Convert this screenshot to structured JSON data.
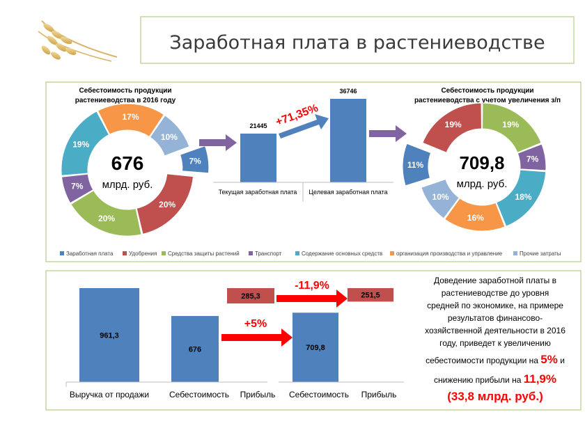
{
  "title": "Заработная плата в растениеводстве",
  "colors": {
    "wages": "#4f81bd",
    "fertilizer": "#c0504d",
    "protection": "#9bbb59",
    "transport": "#8064a2",
    "fixed_assets": "#4bacc6",
    "organization": "#f79646",
    "other": "#95b3d7",
    "red_arrow": "#ff0000",
    "purple_arrow": "#8064a2",
    "panel_border": "#c4d79b",
    "accent_red": "#ff0000"
  },
  "chart_data": [
    {
      "type": "pie",
      "id": "donut_2016",
      "title": "Себестоимость продукции растениеводства в 2016 году",
      "center_value": "676",
      "center_unit": "млрд. руб.",
      "slices": [
        {
          "key": "wages",
          "label": "7%",
          "value": 7,
          "exploded": true
        },
        {
          "key": "fertilizer",
          "label": "20%",
          "value": 20
        },
        {
          "key": "protection",
          "label": "20%",
          "value": 20
        },
        {
          "key": "transport",
          "label": "7%",
          "value": 7
        },
        {
          "key": "fixed_assets",
          "label": "19%",
          "value": 19
        },
        {
          "key": "organization",
          "label": "17%",
          "value": 17
        },
        {
          "key": "other",
          "label": "10%",
          "value": 10
        }
      ]
    },
    {
      "type": "bar",
      "id": "wage_bars",
      "categories": [
        "Текущая заработная плата",
        "Целевая заработная плата"
      ],
      "values": [
        21445,
        36746
      ],
      "value_labels": [
        "21445",
        "36746"
      ],
      "annotation": "+71,35%"
    },
    {
      "type": "pie",
      "id": "donut_new",
      "title": "Себестоимость продукции растениеводства с  учетом увеличения з/п",
      "center_value": "709,8",
      "center_unit": "млрд. руб.",
      "slices": [
        {
          "key": "wages",
          "label": "11%",
          "value": 11,
          "exploded": true
        },
        {
          "key": "fertilizer",
          "label": "19%",
          "value": 19
        },
        {
          "key": "protection",
          "label": "19%",
          "value": 19
        },
        {
          "key": "transport",
          "label": "7%",
          "value": 7
        },
        {
          "key": "fixed_assets",
          "label": "18%",
          "value": 18
        },
        {
          "key": "organization",
          "label": "16%",
          "value": 16
        },
        {
          "key": "other",
          "label": "10%",
          "value": 10
        }
      ]
    },
    {
      "type": "bar",
      "id": "bottom_left",
      "categories": [
        "Выручка от продажи",
        "Себестоимость",
        "Прибыль"
      ],
      "bars": [
        {
          "value": 961.3,
          "label": "961,3",
          "type": "pos"
        },
        {
          "value": 676,
          "label": "676",
          "type": "pos"
        },
        {
          "value": 285.3,
          "label": "285,3",
          "type": "floating",
          "base": 676
        }
      ]
    },
    {
      "type": "bar",
      "id": "bottom_right",
      "categories": [
        "Себестоимость",
        "Прибыль"
      ],
      "bars": [
        {
          "value": 709.8,
          "label": "709,8",
          "type": "pos"
        },
        {
          "value": 251.5,
          "label": "251,5",
          "type": "floating",
          "base": 709.8
        }
      ]
    }
  ],
  "legend": [
    {
      "key": "wages",
      "label": "Заработная плата"
    },
    {
      "key": "fertilizer",
      "label": "Удобрения"
    },
    {
      "key": "protection",
      "label": "Средства защиты растений"
    },
    {
      "key": "transport",
      "label": "Транспорт"
    },
    {
      "key": "fixed_assets",
      "label": "Содержание основных средств"
    },
    {
      "key": "organization",
      "label": "организация производства и управление"
    },
    {
      "key": "other",
      "label": "Прочие затраты"
    }
  ],
  "arrows": {
    "profit_change": "-11,9%",
    "cost_change": "+5%"
  },
  "summary": {
    "lines": [
      "Доведение заработной платы в",
      "растениеводстве  до уровня",
      "средней по экономике, на примере",
      "результатов  финансово-",
      "хозяйственной деятельности в 2016",
      "году, приведет к увеличению"
    ],
    "line7_a": "себестоимости продукции на ",
    "line7_b": "5%",
    "line7_c": " и",
    "line8_a": "снижению прибыли на ",
    "line8_b": "11,9%",
    "line9": "(33,8 млрд. руб.)"
  }
}
